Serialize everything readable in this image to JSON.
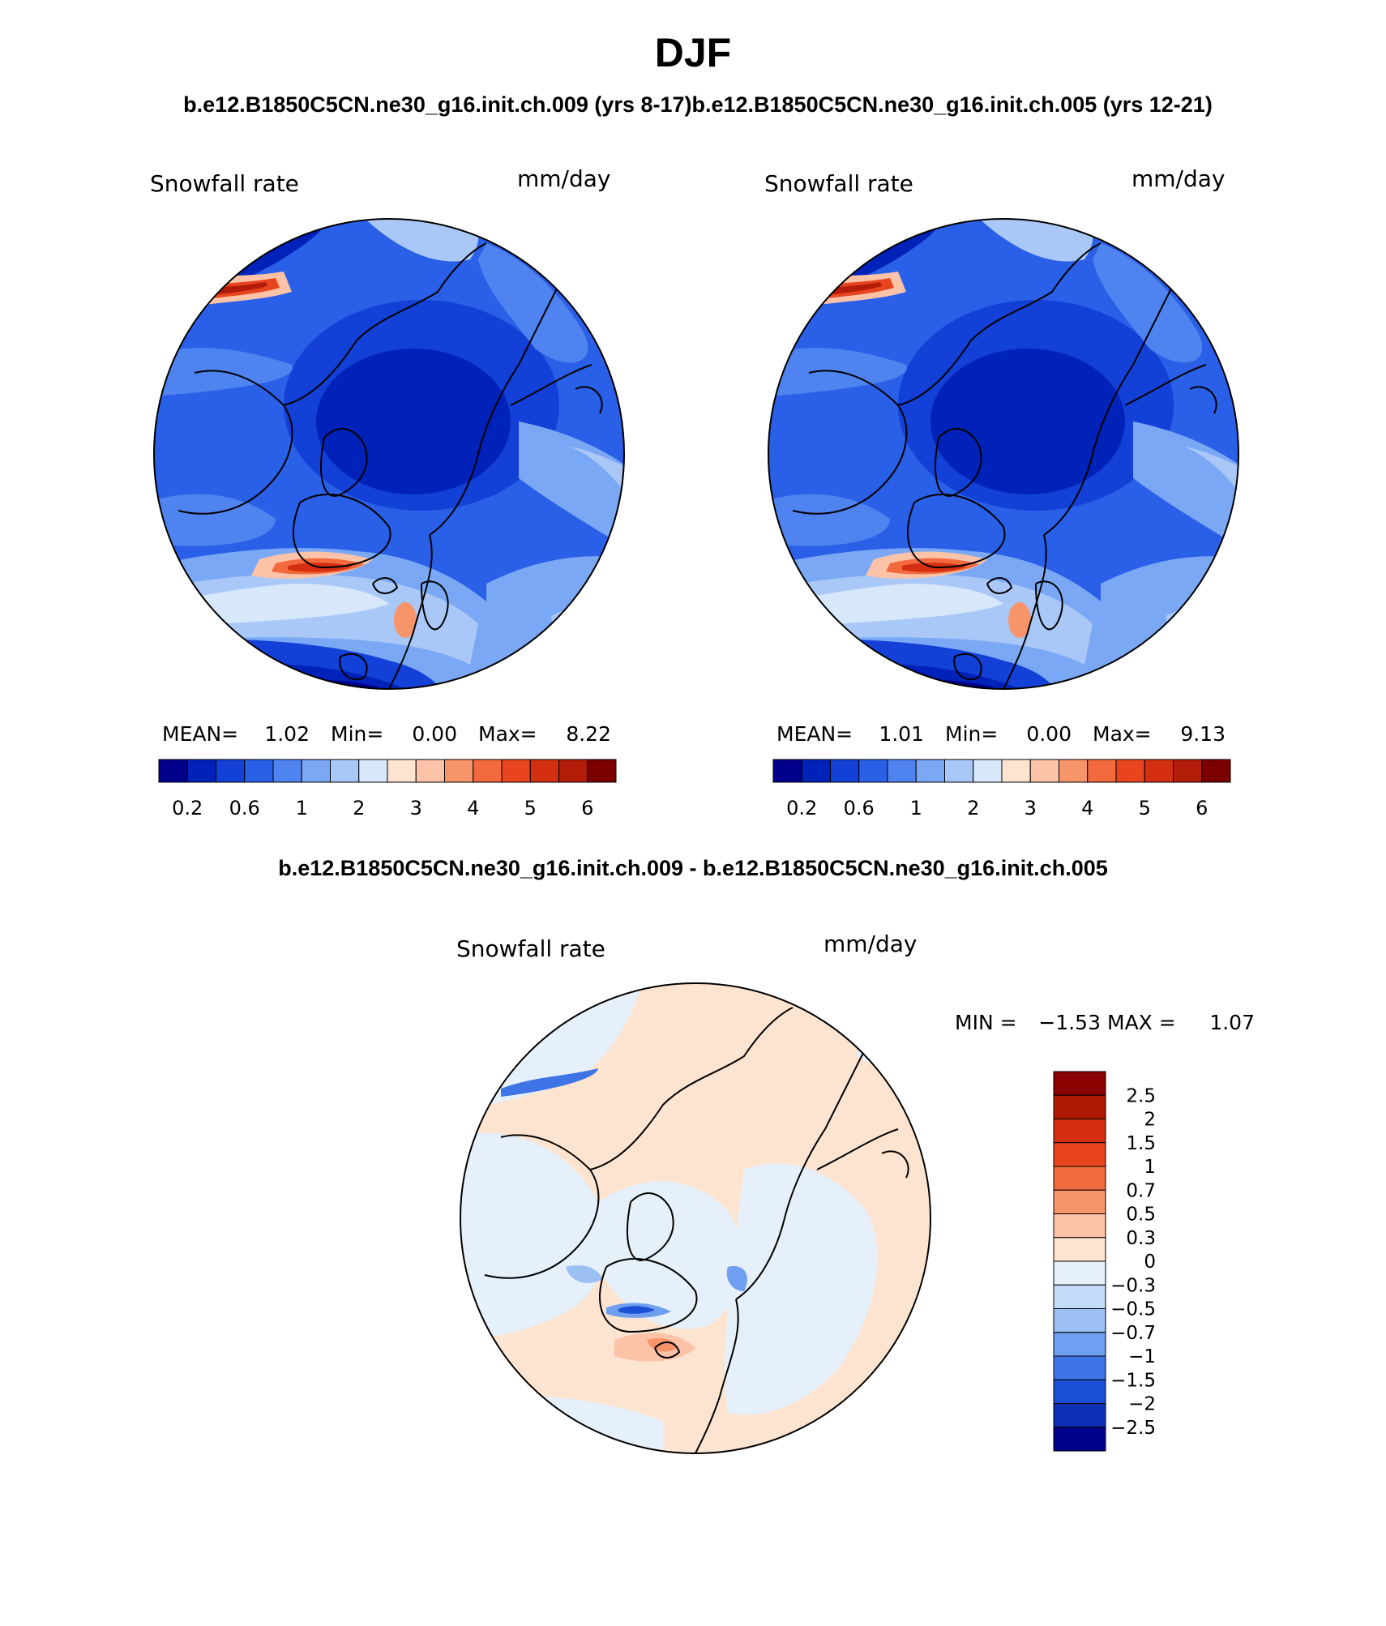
{
  "title": "DJF",
  "case_header": "b.e12.B1850C5CN.ne30_g16.init.ch.009 (yrs 8-17)b.e12.B1850C5CN.ne30_g16.init.ch.005 (yrs 12-21)",
  "diff_header": "b.e12.B1850C5CN.ne30_g16.init.ch.009 - b.e12.B1850C5CN.ne30_g16.init.ch.005",
  "panels": [
    {
      "variable": "Snowfall rate",
      "units": "mm/day",
      "stats": {
        "mean_label": "MEAN=",
        "mean": "1.02",
        "min_label": "Min=",
        "min": "0.00",
        "max_label": "Max=",
        "max": "8.22"
      }
    },
    {
      "variable": "Snowfall rate",
      "units": "mm/day",
      "stats": {
        "mean_label": "MEAN=",
        "mean": "1.01",
        "min_label": "Min=",
        "min": "0.00",
        "max_label": "Max=",
        "max": "9.13"
      }
    }
  ],
  "abs_colorbar": {
    "colors": [
      "#00008b",
      "#0022b8",
      "#1340d6",
      "#2a5fe8",
      "#4f83f0",
      "#7aa8f5",
      "#a9c8f7",
      "#d6e8fa",
      "#fde4d0",
      "#fcc3a8",
      "#f8946a",
      "#f26a3e",
      "#e8451f",
      "#d42f10",
      "#b21c08",
      "#7c0000"
    ],
    "tick_labels": [
      "0.2",
      "0.6",
      "1",
      "2",
      "3",
      "4",
      "5",
      "6"
    ]
  },
  "diff_panel": {
    "variable": "Snowfall rate",
    "units": "mm/day",
    "min_label": "MIN =",
    "min": "−1.53",
    "max_label": "MAX =",
    "max": "1.07"
  },
  "diff_colorbar": {
    "colors_top_to_bottom": [
      "#8b0000",
      "#b01a05",
      "#d42f10",
      "#e8451f",
      "#f26a3e",
      "#f8946a",
      "#fcc3a8",
      "#fde4d0",
      "#e5f0fb",
      "#c3dbf7",
      "#9cc0f4",
      "#6f9ff0",
      "#3f74e6",
      "#1b4fd6",
      "#0d2fb5",
      "#00008b"
    ],
    "tick_labels": [
      "2.5",
      "2",
      "1.5",
      "1",
      "0.7",
      "0.5",
      "0.3",
      "0",
      "−0.3",
      "−0.5",
      "−0.7",
      "−1",
      "−1.5",
      "−2",
      "−2.5"
    ]
  }
}
